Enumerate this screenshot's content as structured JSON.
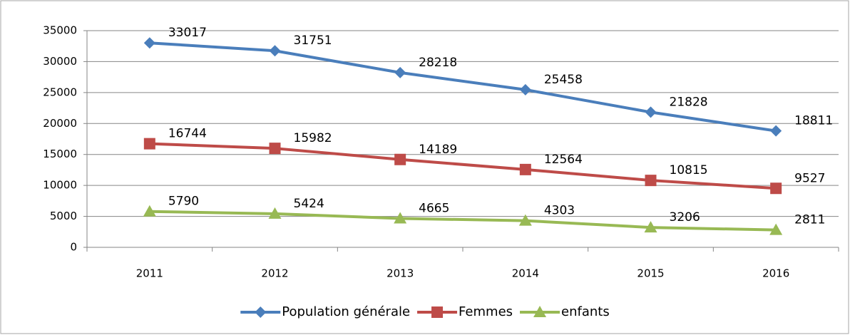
{
  "chart_data": {
    "type": "line",
    "categories": [
      "2011",
      "2012",
      "2013",
      "2014",
      "2015",
      "2016"
    ],
    "series": [
      {
        "name": "Population générale",
        "color": "#4a7ebb",
        "marker": "diamond",
        "values": [
          33017,
          31751,
          28218,
          25458,
          21828,
          18811
        ]
      },
      {
        "name": "Femmes",
        "color": "#be4b48",
        "marker": "square",
        "values": [
          16744,
          15982,
          14189,
          12564,
          10815,
          9527
        ]
      },
      {
        "name": "enfants",
        "color": "#98b954",
        "marker": "triangle",
        "values": [
          5790,
          5424,
          4665,
          4303,
          3206,
          2811
        ]
      }
    ],
    "ylim": [
      0,
      35000
    ],
    "yticks": [
      0,
      5000,
      10000,
      15000,
      20000,
      25000,
      30000,
      35000
    ],
    "grid": true,
    "legend": "bottom"
  }
}
